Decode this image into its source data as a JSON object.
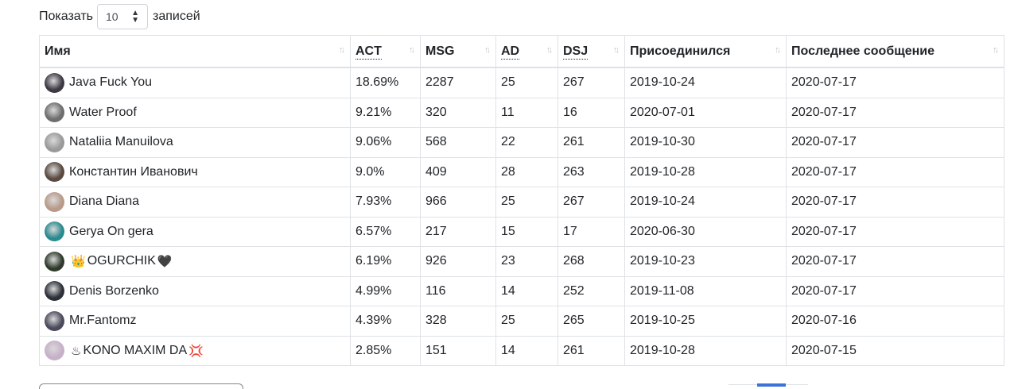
{
  "length_menu": {
    "prefix": "Показать",
    "value": "10",
    "suffix": "записей"
  },
  "table": {
    "columns": [
      {
        "label": "Имя",
        "abbr": false
      },
      {
        "label": "ACT",
        "abbr": true
      },
      {
        "label": "MSG",
        "abbr": false
      },
      {
        "label": "AD",
        "abbr": true
      },
      {
        "label": "DSJ",
        "abbr": true
      },
      {
        "label": "Присоединился",
        "abbr": false
      },
      {
        "label": "Последнее сообщение",
        "abbr": false
      }
    ],
    "sort_glyph": "↑↓",
    "rows": [
      {
        "name": "Java Fuck You",
        "emoji_before": "",
        "emoji_after": "",
        "act": "18.69%",
        "msg": "2287",
        "ad": "25",
        "dsj": "267",
        "joined": "2019-10-24",
        "last": "2020-07-17",
        "avatar_color": "#3d3a44"
      },
      {
        "name": "Water Proof",
        "emoji_before": "",
        "emoji_after": "",
        "act": "9.21%",
        "msg": "320",
        "ad": "11",
        "dsj": "16",
        "joined": "2020-07-01",
        "last": "2020-07-17",
        "avatar_color": "#6e6e6e"
      },
      {
        "name": "Nataliia Manuilova",
        "emoji_before": "",
        "emoji_after": "",
        "act": "9.06%",
        "msg": "568",
        "ad": "22",
        "dsj": "261",
        "joined": "2019-10-30",
        "last": "2020-07-17",
        "avatar_color": "#9a9a9a"
      },
      {
        "name": "Константин Иванович",
        "emoji_before": "",
        "emoji_after": "",
        "act": "9.0%",
        "msg": "409",
        "ad": "28",
        "dsj": "263",
        "joined": "2019-10-28",
        "last": "2020-07-17",
        "avatar_color": "#5a4a40"
      },
      {
        "name": "Diana Diana",
        "emoji_before": "",
        "emoji_after": "",
        "act": "7.93%",
        "msg": "966",
        "ad": "25",
        "dsj": "267",
        "joined": "2019-10-24",
        "last": "2020-07-17",
        "avatar_color": "#b89a8a"
      },
      {
        "name": "Gerya On gera",
        "emoji_before": "",
        "emoji_after": "",
        "act": "6.57%",
        "msg": "217",
        "ad": "15",
        "dsj": "17",
        "joined": "2020-06-30",
        "last": "2020-07-17",
        "avatar_color": "#2a8a8f"
      },
      {
        "name": "OGURCHIK",
        "emoji_before": "👑",
        "emoji_after": "🖤",
        "act": "6.19%",
        "msg": "926",
        "ad": "23",
        "dsj": "268",
        "joined": "2019-10-23",
        "last": "2020-07-17",
        "avatar_color": "#2f3a2c"
      },
      {
        "name": "Denis Borzenko",
        "emoji_before": "",
        "emoji_after": "",
        "act": "4.99%",
        "msg": "116",
        "ad": "14",
        "dsj": "252",
        "joined": "2019-11-08",
        "last": "2020-07-17",
        "avatar_color": "#2c3038"
      },
      {
        "name": "Mr.Fantomz",
        "emoji_before": "",
        "emoji_after": "",
        "act": "4.39%",
        "msg": "328",
        "ad": "25",
        "dsj": "265",
        "joined": "2019-10-25",
        "last": "2020-07-16",
        "avatar_color": "#4a4a5c"
      },
      {
        "name": "KONO MAXIM DA",
        "emoji_before": "♨",
        "emoji_after": "💢",
        "act": "2.85%",
        "msg": "151",
        "ad": "14",
        "dsj": "261",
        "joined": "2019-10-28",
        "last": "2020-07-15",
        "avatar_color": "#c7b0c9"
      }
    ]
  }
}
